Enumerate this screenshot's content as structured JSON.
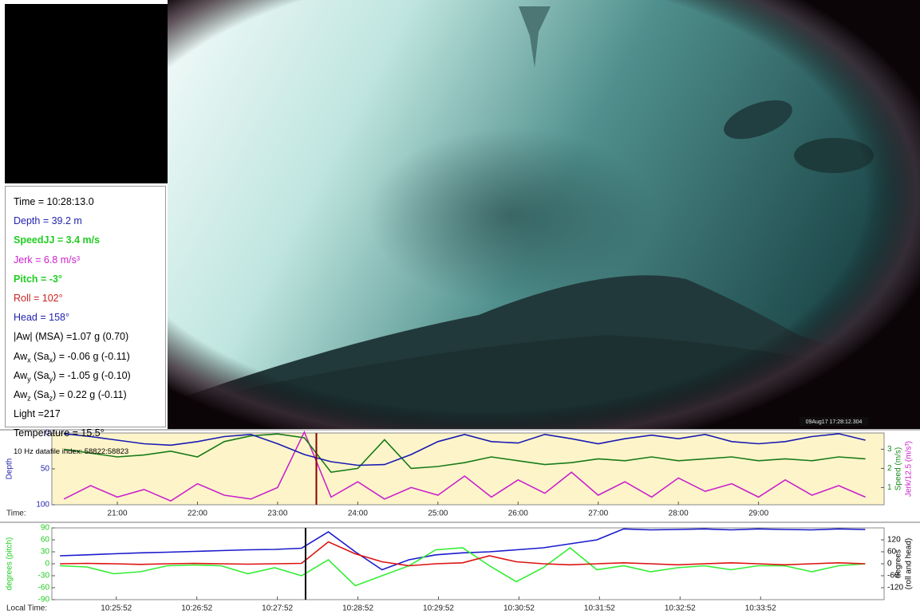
{
  "info_panel": {
    "lines": [
      {
        "color": "#000000",
        "parts": [
          {
            "text": "Time = 10:28:13.0"
          }
        ]
      },
      {
        "color": "#2424b0",
        "parts": [
          {
            "text": "Depth = 39.2 m"
          }
        ]
      },
      {
        "color": "#22cc22",
        "bold": true,
        "parts": [
          {
            "text": "SpeedJJ = 3.4 m/s"
          }
        ]
      },
      {
        "color": "#cc22cc",
        "parts": [
          {
            "text": "Jerk = 6.8 m/s³"
          }
        ]
      },
      {
        "color": "#22cc22",
        "bold": true,
        "parts": [
          {
            "text": "Pitch = -3°"
          }
        ]
      },
      {
        "color": "#cc2222",
        "parts": [
          {
            "text": "Roll = 102°"
          }
        ]
      },
      {
        "color": "#2424b0",
        "parts": [
          {
            "text": "Head = 158°"
          }
        ]
      },
      {
        "color": "#000000",
        "parts": [
          {
            "text": "|Aw| (MSA) =1.07 g (0.70)"
          }
        ]
      },
      {
        "color": "#000000",
        "parts": [
          {
            "text": "Aw"
          },
          {
            "text": "x",
            "sub": true
          },
          {
            "text": " (Sa"
          },
          {
            "text": "x",
            "sub": true
          },
          {
            "text": ") = -0.06 g (-0.11)"
          }
        ]
      },
      {
        "color": "#000000",
        "parts": [
          {
            "text": "Aw"
          },
          {
            "text": "y",
            "sub": true
          },
          {
            "text": " (Sa"
          },
          {
            "text": "y",
            "sub": true
          },
          {
            "text": ") = -1.05 g (-0.10)"
          }
        ]
      },
      {
        "color": "#000000",
        "parts": [
          {
            "text": "Aw"
          },
          {
            "text": "z",
            "sub": true
          },
          {
            "text": " (Sa"
          },
          {
            "text": "z",
            "sub": true
          },
          {
            "text": ") = 0.22 g (-0.11)"
          }
        ]
      },
      {
        "color": "#000000",
        "parts": [
          {
            "text": "Light =217"
          }
        ]
      },
      {
        "color": "#000000",
        "parts": [
          {
            "text": "Temperature = 15.5°"
          }
        ]
      },
      {
        "color": "#000000",
        "small": true,
        "parts": [
          {
            "text": "10 Hz datafile index: 58822:58823"
          }
        ]
      }
    ]
  },
  "video": {
    "timestamp": "09Aug17 17:28:12.304"
  },
  "chart_data": [
    {
      "type": "line",
      "background": "#fdf5c9",
      "xlabel": "Time:",
      "ylabel": {
        "text": "Depth",
        "color": "#2424b0"
      },
      "y2labels": [
        {
          "text": "Speed (m/s)",
          "color": "#1a8a1a"
        },
        {
          "text": "Jerk/12.5 (m/s³)",
          "color": "#cc22cc"
        }
      ],
      "xlim": [
        1211,
        1834
      ],
      "ylim": [
        100,
        0
      ],
      "y2lim": [
        0.1,
        3.85
      ],
      "xticks": [
        {
          "value": 1260,
          "label": "21:00"
        },
        {
          "value": 1320,
          "label": "22:00"
        },
        {
          "value": 1380,
          "label": "23:00"
        },
        {
          "value": 1440,
          "label": "24:00"
        },
        {
          "value": 1500,
          "label": "25:00"
        },
        {
          "value": 1560,
          "label": "26:00"
        },
        {
          "value": 1620,
          "label": "27:00"
        },
        {
          "value": 1680,
          "label": "28:00"
        },
        {
          "value": 1740,
          "label": "29:00"
        }
      ],
      "yticks": [
        0,
        50,
        100
      ],
      "ytick_color": "#2424b0",
      "y2ticks": [
        1,
        2,
        3
      ],
      "y2tick_color": "#1a8a1a",
      "cursor": 1409,
      "cursor_color": "#8b0000",
      "x": [
        1220,
        1240,
        1260,
        1280,
        1300,
        1320,
        1340,
        1360,
        1380,
        1400,
        1420,
        1440,
        1460,
        1480,
        1500,
        1520,
        1540,
        1560,
        1580,
        1600,
        1620,
        1640,
        1660,
        1680,
        1700,
        1720,
        1740,
        1760,
        1780,
        1800,
        1820
      ],
      "series": [
        {
          "color": "#cc22cc",
          "axis": "y2",
          "values": [
            0.4,
            1.1,
            0.5,
            0.9,
            0.3,
            1.2,
            0.6,
            0.4,
            1.0,
            3.9,
            0.5,
            1.3,
            0.4,
            1.0,
            0.6,
            1.6,
            0.5,
            1.4,
            0.7,
            1.8,
            0.6,
            1.3,
            0.5,
            1.5,
            0.8,
            1.2,
            0.5,
            1.4,
            0.6,
            1.1,
            0.5
          ]
        },
        {
          "color": "#1a7a1a",
          "axis": "y2",
          "values": [
            3.0,
            2.8,
            2.6,
            2.7,
            2.9,
            2.6,
            3.4,
            3.7,
            3.8,
            3.6,
            1.8,
            2.0,
            3.5,
            2.0,
            2.1,
            2.3,
            2.6,
            2.4,
            2.2,
            2.3,
            2.5,
            2.4,
            2.6,
            2.4,
            2.5,
            2.6,
            2.4,
            2.5,
            2.4,
            2.6,
            2.5
          ]
        },
        {
          "color": "#1a1ab4",
          "axis": "y",
          "values": [
            1,
            5,
            10,
            15,
            17,
            12,
            5,
            2,
            15,
            30,
            40,
            45,
            44,
            30,
            12,
            2,
            12,
            14,
            2,
            8,
            15,
            8,
            3,
            8,
            2,
            12,
            15,
            12,
            5,
            1,
            10
          ]
        }
      ]
    },
    {
      "type": "line",
      "background": "#ffffff",
      "xlabel": "Local Time:",
      "ylabel": {
        "text": "degrees (pitch)",
        "color": "#22cc22"
      },
      "y2labels": [
        {
          "text": "degrees",
          "color": "#000000"
        },
        {
          "text": "(roll and head)",
          "color": "#000000"
        }
      ],
      "xlim": [
        1504,
        2124
      ],
      "ylim": [
        -90,
        90
      ],
      "y2lim": [
        -180,
        180
      ],
      "xticks": [
        {
          "value": 1552,
          "label": "10:25:52"
        },
        {
          "value": 1612,
          "label": "10:26:52"
        },
        {
          "value": 1672,
          "label": "10:27:52"
        },
        {
          "value": 1732,
          "label": "10:28:52"
        },
        {
          "value": 1792,
          "label": "10:29:52"
        },
        {
          "value": 1852,
          "label": "10:30:52"
        },
        {
          "value": 1912,
          "label": "10:31:52"
        },
        {
          "value": 1972,
          "label": "10:32:52"
        },
        {
          "value": 2032,
          "label": "10:33:52"
        }
      ],
      "yticks": [
        90,
        60,
        30,
        0,
        -30,
        -60,
        -90
      ],
      "ytick_color": "#22cc22",
      "y2ticks": [
        120,
        60,
        0,
        -60,
        -120
      ],
      "y2tick_color": "#000000",
      "cursor": 1693,
      "cursor_color": "#000000",
      "x": [
        1510,
        1530,
        1550,
        1570,
        1590,
        1610,
        1630,
        1650,
        1670,
        1690,
        1710,
        1730,
        1750,
        1770,
        1790,
        1810,
        1830,
        1850,
        1870,
        1890,
        1910,
        1930,
        1950,
        1970,
        1990,
        2010,
        2030,
        2050,
        2070,
        2090,
        2110
      ],
      "series": [
        {
          "color": "#1a1acc",
          "axis": "y2",
          "values": [
            40,
            45,
            50,
            55,
            58,
            62,
            66,
            70,
            72,
            78,
            160,
            60,
            -30,
            20,
            45,
            55,
            60,
            70,
            80,
            100,
            120,
            175,
            170,
            172,
            175,
            170,
            175,
            172,
            170,
            175,
            172
          ]
        },
        {
          "color": "#33ee33",
          "axis": "y",
          "values": [
            -5,
            -8,
            -25,
            -20,
            -5,
            -3,
            -5,
            -25,
            -10,
            -30,
            10,
            -55,
            -30,
            -5,
            35,
            40,
            -5,
            -45,
            -10,
            40,
            -15,
            -5,
            -20,
            -10,
            -5,
            -15,
            -5,
            -5,
            -20,
            -5,
            0
          ]
        },
        {
          "color": "#dd1111",
          "axis": "y2",
          "values": [
            0,
            2,
            0,
            -3,
            0,
            2,
            0,
            -2,
            0,
            2,
            110,
            50,
            10,
            -10,
            0,
            5,
            40,
            10,
            0,
            -5,
            0,
            5,
            0,
            -5,
            0,
            5,
            0,
            -5,
            0,
            5,
            0
          ]
        }
      ]
    }
  ]
}
